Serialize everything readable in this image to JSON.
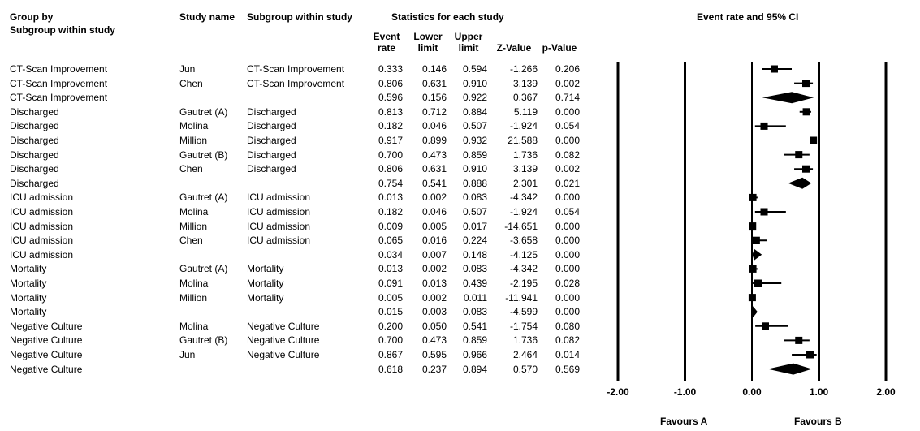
{
  "headers": {
    "group_by": "Group by",
    "subgroup_within_study": "Subgroup within study",
    "study_name": "Study name",
    "subgroup_col": "Subgroup within study",
    "stats_title": "Statistics for each study",
    "plot_title": "Event rate and 95% CI",
    "event_rate_1": "Event",
    "event_rate_2": "rate",
    "lower_1": "Lower",
    "lower_2": "limit",
    "upper_1": "Upper",
    "upper_2": "limit",
    "z": "Z-Value",
    "p": "p-Value"
  },
  "footer": {
    "favours_a": "Favours A",
    "favours_b": "Favours B"
  },
  "chart_data": {
    "type": "forest",
    "title": "Event rate and 95% CI",
    "xlim": [
      -2.0,
      2.0
    ],
    "x_ticks": [
      "-2.00",
      "-1.00",
      "0.00",
      "1.00",
      "2.00"
    ],
    "x_tick_values": [
      -2,
      -1,
      0,
      1,
      2
    ],
    "rows": [
      {
        "group": "CT-Scan Improvement",
        "study": "Jun",
        "subgroup": "CT-Scan Improvement",
        "rate": "0.333",
        "lower": "0.146",
        "upper": "0.594",
        "z": "-1.266",
        "p": "0.206",
        "summary": false
      },
      {
        "group": "CT-Scan Improvement",
        "study": "Chen",
        "subgroup": "CT-Scan Improvement",
        "rate": "0.806",
        "lower": "0.631",
        "upper": "0.910",
        "z": "3.139",
        "p": "0.002",
        "summary": false
      },
      {
        "group": "CT-Scan Improvement",
        "study": "",
        "subgroup": "",
        "rate": "0.596",
        "lower": "0.156",
        "upper": "0.922",
        "z": "0.367",
        "p": "0.714",
        "summary": true
      },
      {
        "group": "Discharged",
        "study": "Gautret (A)",
        "subgroup": "Discharged",
        "rate": "0.813",
        "lower": "0.712",
        "upper": "0.884",
        "z": "5.119",
        "p": "0.000",
        "summary": false
      },
      {
        "group": "Discharged",
        "study": "Molina",
        "subgroup": "Discharged",
        "rate": "0.182",
        "lower": "0.046",
        "upper": "0.507",
        "z": "-1.924",
        "p": "0.054",
        "summary": false
      },
      {
        "group": "Discharged",
        "study": "Million",
        "subgroup": "Discharged",
        "rate": "0.917",
        "lower": "0.899",
        "upper": "0.932",
        "z": "21.588",
        "p": "0.000",
        "summary": false
      },
      {
        "group": "Discharged",
        "study": "Gautret (B)",
        "subgroup": "Discharged",
        "rate": "0.700",
        "lower": "0.473",
        "upper": "0.859",
        "z": "1.736",
        "p": "0.082",
        "summary": false
      },
      {
        "group": "Discharged",
        "study": "Chen",
        "subgroup": "Discharged",
        "rate": "0.806",
        "lower": "0.631",
        "upper": "0.910",
        "z": "3.139",
        "p": "0.002",
        "summary": false
      },
      {
        "group": "Discharged",
        "study": "",
        "subgroup": "",
        "rate": "0.754",
        "lower": "0.541",
        "upper": "0.888",
        "z": "2.301",
        "p": "0.021",
        "summary": true
      },
      {
        "group": "ICU admission",
        "study": "Gautret (A)",
        "subgroup": "ICU admission",
        "rate": "0.013",
        "lower": "0.002",
        "upper": "0.083",
        "z": "-4.342",
        "p": "0.000",
        "summary": false
      },
      {
        "group": "ICU admission",
        "study": "Molina",
        "subgroup": "ICU admission",
        "rate": "0.182",
        "lower": "0.046",
        "upper": "0.507",
        "z": "-1.924",
        "p": "0.054",
        "summary": false
      },
      {
        "group": "ICU admission",
        "study": "Million",
        "subgroup": "ICU admission",
        "rate": "0.009",
        "lower": "0.005",
        "upper": "0.017",
        "z": "-14.651",
        "p": "0.000",
        "summary": false
      },
      {
        "group": "ICU admission",
        "study": "Chen",
        "subgroup": "ICU admission",
        "rate": "0.065",
        "lower": "0.016",
        "upper": "0.224",
        "z": "-3.658",
        "p": "0.000",
        "summary": false
      },
      {
        "group": "ICU admission",
        "study": "",
        "subgroup": "",
        "rate": "0.034",
        "lower": "0.007",
        "upper": "0.148",
        "z": "-4.125",
        "p": "0.000",
        "summary": true
      },
      {
        "group": "Mortality",
        "study": "Gautret (A)",
        "subgroup": "Mortality",
        "rate": "0.013",
        "lower": "0.002",
        "upper": "0.083",
        "z": "-4.342",
        "p": "0.000",
        "summary": false
      },
      {
        "group": "Mortality",
        "study": "Molina",
        "subgroup": "Mortality",
        "rate": "0.091",
        "lower": "0.013",
        "upper": "0.439",
        "z": "-2.195",
        "p": "0.028",
        "summary": false
      },
      {
        "group": "Mortality",
        "study": "Million",
        "subgroup": "Mortality",
        "rate": "0.005",
        "lower": "0.002",
        "upper": "0.011",
        "z": "-11.941",
        "p": "0.000",
        "summary": false
      },
      {
        "group": "Mortality",
        "study": "",
        "subgroup": "",
        "rate": "0.015",
        "lower": "0.003",
        "upper": "0.083",
        "z": "-4.599",
        "p": "0.000",
        "summary": true
      },
      {
        "group": "Negative Culture",
        "study": "Molina",
        "subgroup": "Negative Culture",
        "rate": "0.200",
        "lower": "0.050",
        "upper": "0.541",
        "z": "-1.754",
        "p": "0.080",
        "summary": false
      },
      {
        "group": "Negative Culture",
        "study": "Gautret (B)",
        "subgroup": "Negative Culture",
        "rate": "0.700",
        "lower": "0.473",
        "upper": "0.859",
        "z": "1.736",
        "p": "0.082",
        "summary": false
      },
      {
        "group": "Negative Culture",
        "study": "Jun",
        "subgroup": "Negative Culture",
        "rate": "0.867",
        "lower": "0.595",
        "upper": "0.966",
        "z": "2.464",
        "p": "0.014",
        "summary": false
      },
      {
        "group": "Negative Culture",
        "study": "",
        "subgroup": "",
        "rate": "0.618",
        "lower": "0.237",
        "upper": "0.894",
        "z": "0.570",
        "p": "0.569",
        "summary": true
      }
    ]
  }
}
